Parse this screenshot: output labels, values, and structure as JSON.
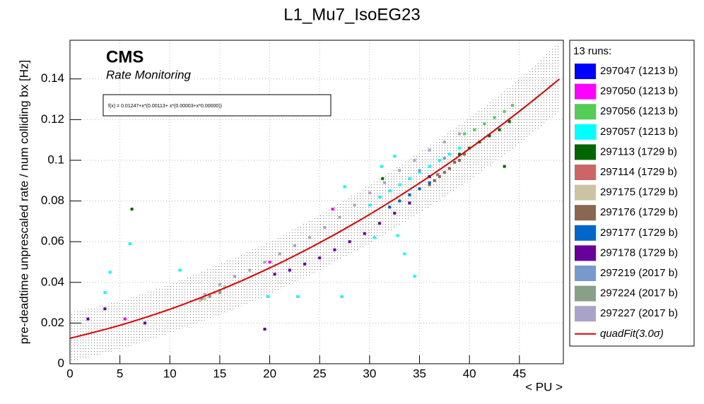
{
  "chart_data": {
    "type": "scatter",
    "title": "L1_Mu7_IsoEG23",
    "x_label": "< PU >",
    "y_label": "pre-deadtime unprescaled rate / num colliding bx [Hz]",
    "annotations": [
      "CMS",
      "Rate Monitoring",
      "f(x) = 0.01247+x*(0.00113+ x*(0.00003+x*0.00000))"
    ],
    "legend_title": "13 runs:",
    "xlim": [
      0,
      49.4
    ],
    "ylim": [
      0,
      0.159
    ],
    "xticks": [
      0,
      5,
      10,
      15,
      20,
      25,
      30,
      35,
      40,
      45
    ],
    "yticks": [
      0,
      0.02,
      0.04,
      0.06,
      0.08,
      0.1,
      0.12,
      0.14
    ],
    "grid": true,
    "series": [
      {
        "name": "297047 (1213 b)",
        "color": "#0000ff",
        "x": [
          36
        ],
        "values": [
          0.092
        ]
      },
      {
        "name": "297050 (1213 b)",
        "color": "#ff00ff",
        "x": [
          5.5,
          26.3,
          20
        ],
        "values": [
          0.022,
          0.076,
          0.05
        ]
      },
      {
        "name": "297056 (1213 b)",
        "color": "#55cc55",
        "x": [
          39.5,
          40.5,
          41.5,
          42.5,
          43.5,
          44.3
        ],
        "values": [
          0.113,
          0.115,
          0.118,
          0.121,
          0.124,
          0.127
        ]
      },
      {
        "name": "297057 (1213 b)",
        "color": "#00ffff",
        "x": [
          30,
          31,
          32,
          33,
          34,
          35,
          36,
          37,
          38,
          39,
          6,
          4,
          3.5,
          11,
          19.8,
          22.8,
          27.2,
          27.5,
          30.5,
          32.8,
          33.5,
          31.2,
          32.5,
          34.5
        ],
        "values": [
          0.078,
          0.082,
          0.085,
          0.088,
          0.091,
          0.094,
          0.097,
          0.1,
          0.103,
          0.106,
          0.059,
          0.045,
          0.035,
          0.046,
          0.033,
          0.033,
          0.033,
          0.087,
          0.062,
          0.063,
          0.054,
          0.097,
          0.102,
          0.043
        ]
      },
      {
        "name": "297113 (1729 b)",
        "color": "#006600",
        "x": [
          39,
          40,
          41,
          42,
          43,
          44,
          6.2,
          31.3,
          43.5
        ],
        "values": [
          0.103,
          0.106,
          0.109,
          0.112,
          0.115,
          0.119,
          0.076,
          0.091,
          0.097
        ]
      },
      {
        "name": "297114 (1729 b)",
        "color": "#cc6666",
        "x": [
          38,
          36.8
        ],
        "values": [
          0.096,
          0.093
        ]
      },
      {
        "name": "297175 (1729 b)",
        "color": "#cbc3a3",
        "x": [
          13,
          13.5,
          14,
          14.5,
          15,
          15.5
        ],
        "values": [
          0.031,
          0.032,
          0.034,
          0.035,
          0.036,
          0.038
        ]
      },
      {
        "name": "297176 (1729 b)",
        "color": "#8b6651",
        "x": [
          36,
          36.5,
          37,
          37.5,
          38,
          38.5,
          39,
          39.5
        ],
        "values": [
          0.088,
          0.09,
          0.092,
          0.094,
          0.096,
          0.099,
          0.1,
          0.103
        ]
      },
      {
        "name": "297177 (1729 b)",
        "color": "#0066cc",
        "x": [
          32,
          33,
          34,
          35,
          36
        ],
        "values": [
          0.077,
          0.08,
          0.083,
          0.086,
          0.089
        ]
      },
      {
        "name": "297178 (1729 b)",
        "color": "#660099",
        "x": [
          20.5,
          22,
          23.5,
          25,
          26.5,
          28,
          29.5,
          31,
          32.5,
          34,
          19.5,
          1.8,
          3.5,
          7.5
        ],
        "values": [
          0.044,
          0.046,
          0.049,
          0.052,
          0.056,
          0.06,
          0.064,
          0.069,
          0.074,
          0.079,
          0.017,
          0.022,
          0.027,
          0.02
        ]
      },
      {
        "name": "297219 (2017 b)",
        "color": "#7799cc",
        "x": [
          35,
          37.5
        ],
        "values": [
          0.095,
          0.101
        ]
      },
      {
        "name": "297224 (2017 b)",
        "color": "#88a088",
        "x": [
          13.2,
          14,
          15
        ],
        "values": [
          0.032,
          0.033,
          0.035
        ]
      },
      {
        "name": "297227 (2017 b)",
        "color": "#a9a3c8",
        "x": [
          13.5,
          15,
          16.5,
          18,
          19.5,
          21,
          22.5,
          24,
          25.5,
          27,
          28.5,
          30,
          31.5,
          33,
          34.5,
          36,
          37.5,
          39
        ],
        "values": [
          0.034,
          0.039,
          0.043,
          0.046,
          0.05,
          0.054,
          0.058,
          0.062,
          0.067,
          0.072,
          0.078,
          0.084,
          0.089,
          0.095,
          0.1,
          0.105,
          0.109,
          0.113
        ]
      }
    ],
    "fit": {
      "name": "quadFit(3.0σ)",
      "color": "#e00000",
      "x": [
        0,
        5,
        10,
        15,
        20,
        25,
        30,
        35,
        40,
        45,
        49
      ],
      "values": [
        0.0125,
        0.0189,
        0.0268,
        0.0362,
        0.0471,
        0.0595,
        0.0734,
        0.0888,
        0.1057,
        0.1241,
        0.1399
      ],
      "band_lower": [
        0.001,
        0.007,
        0.015,
        0.024,
        0.034,
        0.046,
        0.059,
        0.074,
        0.09,
        0.108,
        0.124
      ],
      "band_upper": [
        0.025,
        0.031,
        0.039,
        0.049,
        0.06,
        0.073,
        0.088,
        0.104,
        0.121,
        0.14,
        0.158
      ]
    }
  }
}
